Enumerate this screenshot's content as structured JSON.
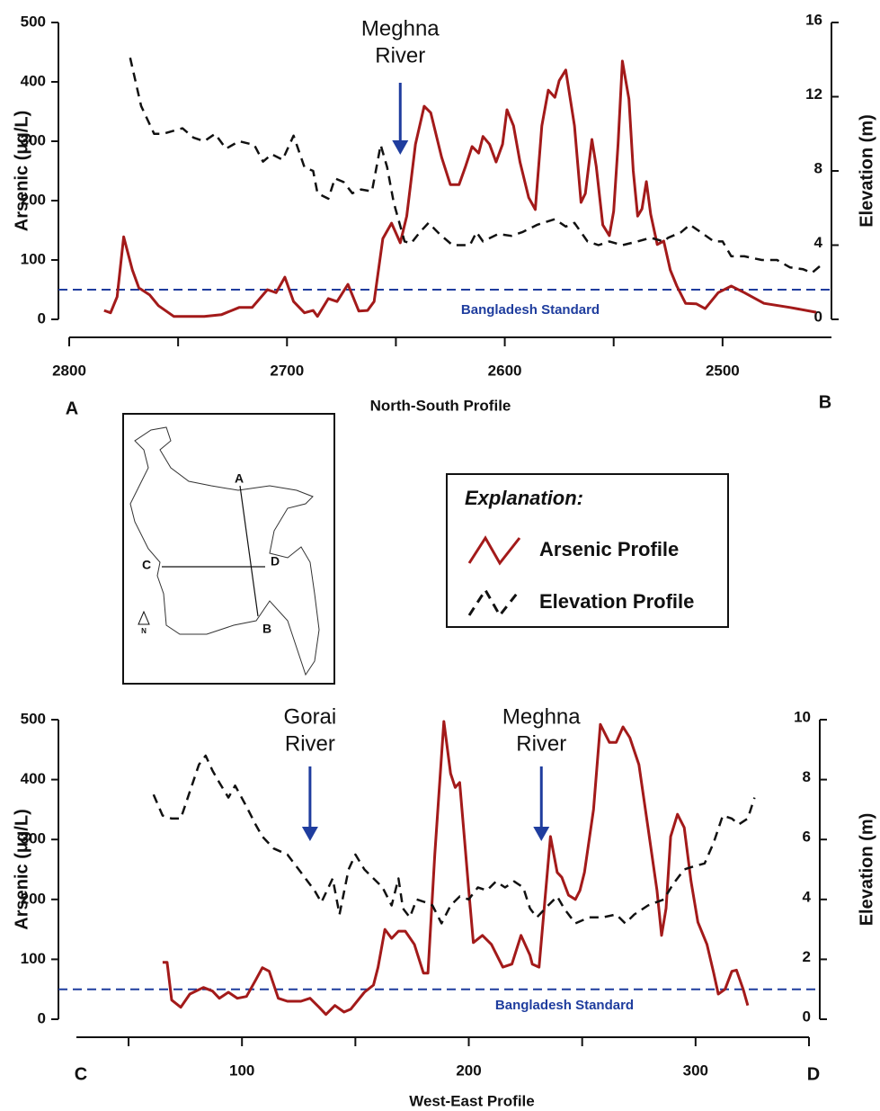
{
  "chart_data": [
    {
      "type": "line",
      "x_label": "North-South Profile",
      "y_label": "Arsenic (μg/L)",
      "y2_label": "Elevation (m)",
      "corner_labels": [
        "A",
        "B"
      ],
      "xlim": [
        2800,
        2450
      ],
      "xticks": [
        2800,
        2700,
        2600,
        2500
      ],
      "xminor_ticks": [
        2750,
        2650,
        2550
      ],
      "ylim": [
        0,
        500
      ],
      "yticks": [
        0,
        100,
        200,
        300,
        400,
        500
      ],
      "y2lim": [
        0,
        16
      ],
      "y2ticks": [
        0,
        4,
        8,
        12,
        16
      ],
      "standard": {
        "value": 50,
        "label": "Bangladesh Standard",
        "color": "#1f3d9e"
      },
      "annotations": [
        {
          "lines": [
            "Meghna",
            "River"
          ],
          "x": 2648
        }
      ],
      "series": [
        {
          "color": "#a31a1a",
          "dash": false,
          "axis": "y",
          "x": [
            2784,
            2781,
            2778,
            2775,
            2771,
            2768,
            2763,
            2759,
            2752,
            2738,
            2730,
            2722,
            2716,
            2709,
            2705,
            2701,
            2697,
            2692,
            2688,
            2686,
            2681,
            2677,
            2672,
            2667,
            2663,
            2660,
            2656,
            2652,
            2648,
            2645,
            2641,
            2637,
            2634,
            2629,
            2625,
            2621,
            2618,
            2615,
            2612,
            2610,
            2607,
            2604,
            2601,
            2599,
            2596,
            2593,
            2589,
            2586,
            2583,
            2580,
            2577,
            2575,
            2572,
            2568,
            2565,
            2563,
            2560,
            2558,
            2555,
            2552,
            2550,
            2548,
            2546,
            2543,
            2541,
            2539,
            2537,
            2535,
            2533,
            2530,
            2527,
            2524,
            2521,
            2517,
            2512,
            2508,
            2502,
            2496,
            2490,
            2481,
            2469,
            2457
          ],
          "values": [
            15,
            11,
            38,
            139,
            83,
            53,
            41,
            23,
            5,
            5,
            8,
            20,
            20,
            50,
            45,
            71,
            30,
            11,
            15,
            5,
            35,
            30,
            59,
            14,
            15,
            30,
            136,
            162,
            129,
            174,
            295,
            359,
            348,
            273,
            227,
            227,
            258,
            291,
            280,
            308,
            295,
            265,
            295,
            353,
            326,
            265,
            205,
            185,
            326,
            386,
            374,
            402,
            420,
            326,
            197,
            212,
            303,
            258,
            159,
            141,
            182,
            295,
            435,
            371,
            250,
            174,
            186,
            232,
            177,
            126,
            132,
            83,
            56,
            27,
            26,
            18,
            45,
            56,
            45,
            27,
            20,
            12
          ]
        },
        {
          "color": "#111111",
          "dash": true,
          "axis": "y2",
          "x": [
            2772,
            2767,
            2761,
            2757,
            2748,
            2743,
            2738,
            2733,
            2728,
            2722,
            2715,
            2711,
            2707,
            2702,
            2697,
            2692,
            2688,
            2686,
            2681,
            2678,
            2674,
            2670,
            2666,
            2661,
            2657,
            2654,
            2651,
            2646,
            2643,
            2639,
            2635,
            2630,
            2624,
            2616,
            2613,
            2610,
            2603,
            2597,
            2592,
            2585,
            2577,
            2572,
            2568,
            2562,
            2557,
            2552,
            2546,
            2539,
            2533,
            2527,
            2525,
            2519,
            2515,
            2510,
            2504,
            2500,
            2496,
            2490,
            2482,
            2475,
            2469,
            2463,
            2459,
            2455
          ],
          "values": [
            14.1,
            11.5,
            10,
            10,
            10.3,
            9.8,
            9.6,
            10,
            9.2,
            9.6,
            9.4,
            8.5,
            8.9,
            8.6,
            9.9,
            8.2,
            8,
            6.8,
            6.5,
            7.6,
            7.4,
            6.8,
            7,
            6.9,
            9.4,
            8.2,
            6.3,
            4.2,
            4.1,
            4.7,
            5.2,
            4.6,
            4,
            4,
            4.7,
            4.2,
            4.6,
            4.5,
            4.7,
            5.1,
            5.4,
            5,
            5.2,
            4.2,
            4,
            4.2,
            4,
            4.2,
            4.4,
            4.2,
            4.4,
            4.7,
            5.1,
            4.7,
            4.2,
            4.2,
            3.4,
            3.4,
            3.2,
            3.2,
            2.8,
            2.7,
            2.5,
            2.9
          ]
        }
      ]
    },
    {
      "type": "line",
      "x_label": "West-East Profile",
      "y_label": "Arsenic (μg/L)",
      "y2_label": "Elevation (m)",
      "corner_labels": [
        "C",
        "D"
      ],
      "xlim": [
        27,
        350
      ],
      "xticks": [
        100,
        200,
        300
      ],
      "xminor_ticks": [
        50,
        150,
        250,
        350
      ],
      "ylim": [
        0,
        500
      ],
      "yticks": [
        0,
        100,
        200,
        300,
        400,
        500
      ],
      "y2lim": [
        0,
        10
      ],
      "y2ticks": [
        0,
        2,
        4,
        6,
        8,
        10
      ],
      "standard": {
        "value": 50,
        "label": "Bangladesh Standard",
        "color": "#1f3d9e"
      },
      "annotations": [
        {
          "lines": [
            "Gorai",
            "River"
          ],
          "x": 130
        },
        {
          "lines": [
            "Meghna",
            "River"
          ],
          "x": 232
        }
      ],
      "series": [
        {
          "color": "#a31a1a",
          "dash": false,
          "axis": "y",
          "x": [
            65,
            67,
            69,
            73,
            77,
            83,
            87,
            90,
            94,
            98,
            102,
            106,
            109,
            112,
            116,
            120,
            126,
            130,
            134,
            137,
            141,
            145,
            148,
            154,
            158,
            160,
            163,
            166,
            169,
            172,
            176,
            180,
            182,
            185,
            189,
            192,
            194,
            196,
            198,
            200,
            202,
            206,
            210,
            215,
            219,
            223,
            227,
            228,
            231,
            236,
            239,
            241,
            244,
            247,
            249,
            251,
            255,
            258,
            262,
            265,
            268,
            271,
            275,
            279,
            283,
            285,
            287,
            289,
            292,
            295,
            298,
            301,
            305,
            308,
            310,
            313,
            316,
            318,
            321,
            323
          ],
          "values": [
            95,
            95,
            32,
            20,
            42,
            53,
            47,
            35,
            45,
            35,
            38,
            65,
            86,
            80,
            35,
            30,
            30,
            35,
            20,
            8,
            23,
            12,
            17,
            45,
            57,
            87,
            150,
            135,
            147,
            147,
            125,
            77,
            77,
            275,
            497,
            410,
            387,
            395,
            305,
            215,
            128,
            140,
            125,
            87,
            92,
            140,
            107,
            92,
            87,
            305,
            245,
            237,
            207,
            200,
            215,
            245,
            350,
            492,
            462,
            462,
            488,
            470,
            425,
            320,
            215,
            140,
            185,
            305,
            342,
            320,
            230,
            162,
            125,
            77,
            42,
            50,
            80,
            82,
            50,
            23
          ]
        },
        {
          "color": "#111111",
          "dash": true,
          "axis": "y2",
          "x": [
            61,
            65,
            69,
            73,
            77,
            81,
            84,
            87,
            90,
            94,
            97,
            102,
            106,
            109,
            114,
            120,
            126,
            132,
            135,
            140,
            143,
            147,
            150,
            154,
            158,
            162,
            166,
            169,
            171,
            174,
            177,
            181,
            184,
            188,
            192,
            196,
            200,
            204,
            208,
            212,
            216,
            220,
            224,
            227,
            230,
            235,
            239,
            242,
            247,
            253,
            259,
            265,
            269,
            273,
            279,
            286,
            290,
            295,
            299,
            304,
            308,
            312,
            316,
            319,
            323,
            326
          ],
          "values": [
            7.5,
            6.8,
            6.7,
            6.7,
            7.6,
            8.5,
            8.8,
            8.3,
            7.9,
            7.4,
            7.8,
            7.1,
            6.5,
            6.1,
            5.7,
            5.5,
            4.9,
            4.3,
            3.9,
            4.7,
            3.5,
            5,
            5.5,
            5,
            4.7,
            4.4,
            3.8,
            4.7,
            3.7,
            3.4,
            4,
            3.9,
            3.8,
            3.2,
            3.8,
            4.1,
            4,
            4.4,
            4.3,
            4.6,
            4.4,
            4.6,
            4.4,
            3.7,
            3.4,
            3.8,
            4.1,
            3.7,
            3.2,
            3.4,
            3.4,
            3.5,
            3.2,
            3.5,
            3.8,
            4,
            4.5,
            5,
            5.1,
            5.2,
            5.9,
            6.8,
            6.7,
            6.5,
            6.7,
            7.4
          ]
        }
      ]
    }
  ],
  "explanation": {
    "title": "Explanation:",
    "entries": [
      {
        "name": "Arsenic Profile",
        "color": "#a31a1a",
        "dash": false
      },
      {
        "name": "Elevation Profile",
        "color": "#111111",
        "dash": true
      }
    ]
  },
  "inset_map": {
    "labels": [
      "A",
      "B",
      "C",
      "D"
    ],
    "north": "N"
  }
}
